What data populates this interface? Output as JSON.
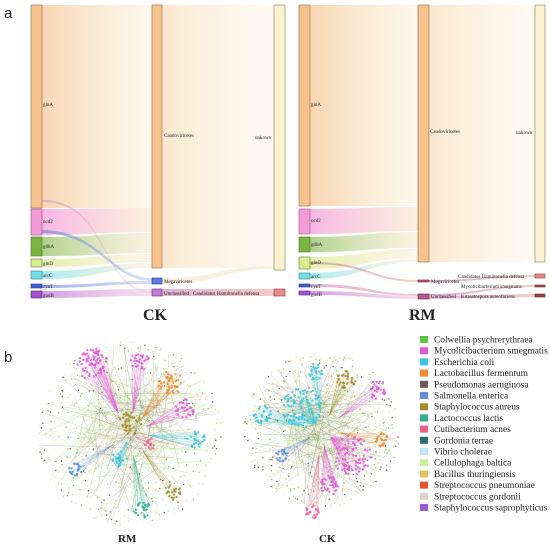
{
  "panel_a_label": "a",
  "panel_b_label": "b",
  "sankey_ck": {
    "caption": "CK",
    "genes": [
      "glnA",
      "ncd2",
      "gdhA",
      "glnD",
      "arcC",
      "cynT",
      "gudB"
    ],
    "taxa": [
      "Caudoviricetes",
      "Megaviricetes",
      "Unclassified"
    ],
    "species": [
      "unkown",
      "Candidatus Hamiltonella defensa"
    ]
  },
  "sankey_rm": {
    "caption": "RM",
    "genes": [
      "glnA",
      "ncd2",
      "gdhA",
      "glnD",
      "arcC",
      "cynT",
      "gudB"
    ],
    "taxa": [
      "Caudoviricetes",
      "Megaviricetes",
      "Unclassified"
    ],
    "species": [
      "unkown",
      "Candidatus Hamiltonella defensa",
      "Mycolicibacterium smegmatis",
      "Kitasatospora aureofaciens"
    ]
  },
  "networks": {
    "left_caption": "RM",
    "right_caption": "CK"
  },
  "legend": [
    {
      "label": "Colwellia psychrerythraea",
      "color": "#5ec63a"
    },
    {
      "label": "Mycolicibacterium smegmatis",
      "color": "#e15bd9"
    },
    {
      "label": "Escherichia coli",
      "color": "#3cc7e0"
    },
    {
      "label": "Lactobacillus fermentum",
      "color": "#f0882e"
    },
    {
      "label": "Pseudomonas aeruginosa",
      "color": "#6b5a5a"
    },
    {
      "label": "Salmonella enterica",
      "color": "#5e8fd8"
    },
    {
      "label": "Staphylococcus aureus",
      "color": "#a58a2c"
    },
    {
      "label": "Lactococcus lactis",
      "color": "#2fb08e"
    },
    {
      "label": "Cutibacterium acnes",
      "color": "#ee5f8e"
    },
    {
      "label": "Gordonia terrae",
      "color": "#2b6f6b"
    },
    {
      "label": "Vibrio cholerae",
      "color": "#bfe7f2"
    },
    {
      "label": "Cellulophaga baltica",
      "color": "#c9ec9e"
    },
    {
      "label": "Bacillus thuringiensis",
      "color": "#e9c35a"
    },
    {
      "label": "Streptococcus pneumoniae",
      "color": "#e8502e"
    },
    {
      "label": "Streptococcus gordonii",
      "color": "#d9d3d3"
    },
    {
      "label": "Staphylococcus saprophyticus",
      "color": "#9b59d9"
    }
  ]
}
